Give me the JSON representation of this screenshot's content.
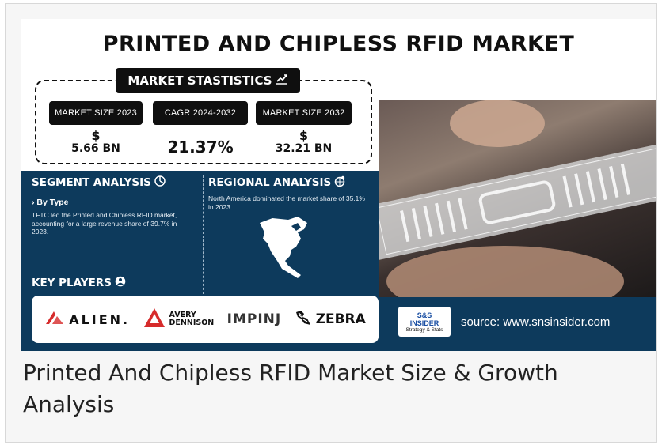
{
  "infographic": {
    "title": "PRINTED AND CHIPLESS RFID MARKET",
    "stats_header": "MARKET STASTISTICS",
    "stats": [
      {
        "label": "MARKET SIZE 2023",
        "currency": "$",
        "value": "5.66 BN"
      },
      {
        "label": "CAGR 2024-2032",
        "currency": "",
        "value": "21.37%"
      },
      {
        "label": "MARKET SIZE 2032",
        "currency": "$",
        "value": "32.21 BN"
      }
    ],
    "segment": {
      "title": "SEGMENT ANALYSIS",
      "subtitle": "› By Type",
      "text": "TFTC led the Printed and Chipless RFID market, accounting for a large revenue share of 39.7% in 2023."
    },
    "regional": {
      "title": "REGIONAL ANALYSIS",
      "text": "North America dominated the market share of 35.1% in 2023"
    },
    "key_players_title": "KEY PLAYERS",
    "players": {
      "alien": "ALIEN.",
      "avery_line1": "AVERY",
      "avery_line2": "DENNISON",
      "impinj": "IMPINJ",
      "zebra": "ZEBRA"
    },
    "source_logo": {
      "line1": "S&S",
      "line2": "INSIDER",
      "line3": "Strategy & Stats"
    },
    "source": "source: www.snsinsider.com"
  },
  "caption": "Printed And Chipless RFID Market Size & Growth Analysis",
  "colors": {
    "navy": "#0d3a5c",
    "black": "#0f0f0f",
    "accent_red": "#d62b2b"
  }
}
